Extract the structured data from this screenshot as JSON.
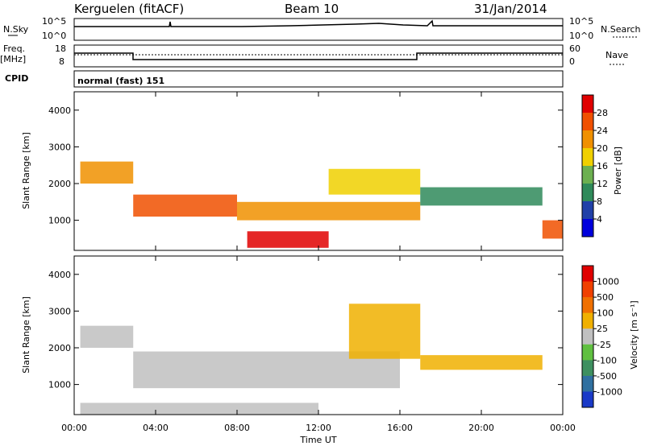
{
  "header": {
    "station": "Kerguelen (fitACF)",
    "beam": "Beam 10",
    "date": "31/Jan/2014"
  },
  "summary_panels": {
    "nsky_label": "N.Sky",
    "nsky_ticks": [
      "10^5",
      "10^0"
    ],
    "nsearch_label": "N.Search",
    "nsearch_ticks": [
      "10^5",
      "10^0"
    ],
    "freq_label_1": "Freq.",
    "freq_label_2": "[MHz]",
    "freq_ticks": [
      "18",
      "8"
    ],
    "nave_label": "Nave",
    "nave_ticks": [
      "60",
      "0"
    ],
    "cpid_label": "CPID",
    "cpid_value": "normal (fast) 151"
  },
  "power_panel": {
    "ylabel": "Slant Range [km]",
    "yticks": [
      "4000",
      "3000",
      "2000",
      "1000"
    ],
    "colorbar_label": "Power [dB]",
    "colorbar_ticks": [
      "28",
      "24",
      "20",
      "16",
      "12",
      "8",
      "4"
    ],
    "colors": [
      "#0000dc",
      "#2040a8",
      "#2f8a5a",
      "#6cb050",
      "#f0d000",
      "#f09000",
      "#f05000",
      "#e00000"
    ]
  },
  "velocity_panel": {
    "ylabel": "Slant Range [km]",
    "yticks": [
      "4000",
      "3000",
      "2000",
      "1000"
    ],
    "colorbar_label": "Velocity [m s⁻¹]",
    "colorbar_ticks": [
      "1000",
      "500",
      "100",
      "25",
      "-25",
      "-100",
      "-500",
      "-1000"
    ],
    "colors": [
      "#1a3ac8",
      "#3070a0",
      "#3e9060",
      "#60c040",
      "#c0c0c0",
      "#f0b000",
      "#f07000",
      "#f04000",
      "#e00000"
    ]
  },
  "xaxis": {
    "label": "Time UT",
    "ticks": [
      "00:00",
      "04:00",
      "08:00",
      "12:00",
      "16:00",
      "20:00",
      "00:00"
    ]
  },
  "chart_data": [
    {
      "type": "heatmap",
      "title": "Power [dB]",
      "ylabel": "Slant Range [km]",
      "xlabel": "",
      "x_range_hours": [
        0,
        24
      ],
      "ylim": [
        180,
        4500
      ],
      "color_range": [
        0,
        32
      ],
      "bands": [
        {
          "t0": 0.3,
          "t1": 2.9,
          "r0": 2000,
          "r1": 2600,
          "value": 20
        },
        {
          "t0": 2.9,
          "t1": 8.0,
          "r0": 1100,
          "r1": 1700,
          "value": 24
        },
        {
          "t0": 8.0,
          "t1": 17.0,
          "r0": 1000,
          "r1": 1500,
          "value": 22
        },
        {
          "t0": 8.5,
          "t1": 12.5,
          "r0": 250,
          "r1": 700,
          "value": 28
        },
        {
          "t0": 12.5,
          "t1": 17.0,
          "r0": 1700,
          "r1": 2400,
          "value": 18
        },
        {
          "t0": 17.0,
          "t1": 23.0,
          "r0": 1400,
          "r1": 1900,
          "value": 8
        },
        {
          "t0": 23.0,
          "t1": 24.0,
          "r0": 500,
          "r1": 1000,
          "value": 26
        }
      ]
    },
    {
      "type": "heatmap",
      "title": "Velocity [m s⁻¹]",
      "ylabel": "Slant Range [km]",
      "xlabel": "Time UT",
      "x_range_hours": [
        0,
        24
      ],
      "ylim": [
        180,
        4500
      ],
      "color_range": [
        -1000,
        1000
      ],
      "bands": [
        {
          "t0": 0.3,
          "t1": 2.9,
          "r0": 2000,
          "r1": 2600,
          "value": 0
        },
        {
          "t0": 2.9,
          "t1": 16.0,
          "r0": 900,
          "r1": 1900,
          "value": 0
        },
        {
          "t0": 13.5,
          "t1": 17.0,
          "r0": 1700,
          "r1": 3200,
          "value": -200
        },
        {
          "t0": 17.0,
          "t1": 23.0,
          "r0": 1400,
          "r1": 1800,
          "value": -150
        },
        {
          "t0": 0.3,
          "t1": 12.0,
          "r0": 180,
          "r1": 500,
          "value": 80
        }
      ]
    }
  ]
}
